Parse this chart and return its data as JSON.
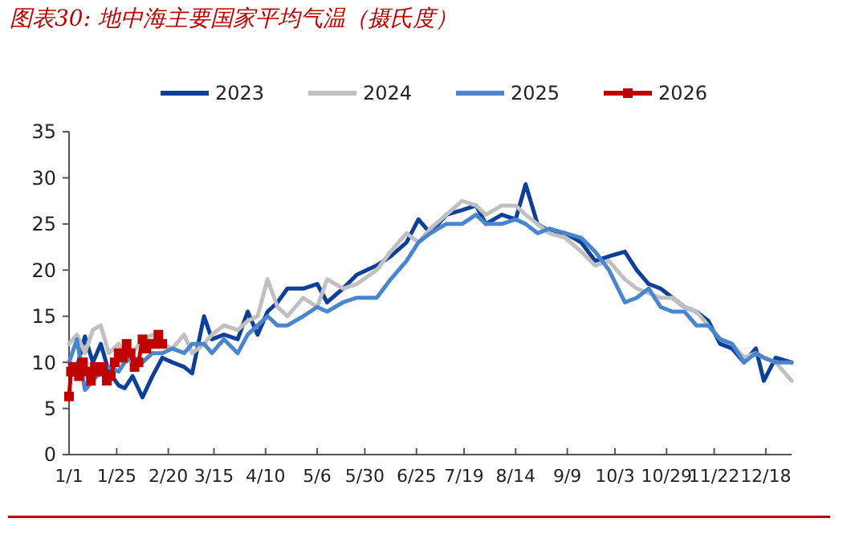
{
  "chart_data": {
    "type": "line",
    "title": "图表30: 地中海主要国家平均气温（摄氏度）",
    "x": [
      "--01-01",
      "--01-05",
      "--01-09",
      "--01-13",
      "--01-17",
      "--01-21",
      "--01-26",
      "--01-29",
      "--02-02",
      "--02-07",
      "--02-12",
      "--02-17",
      "--02-22",
      "--02-28",
      "--03-04",
      "--03-10",
      "--03-14",
      "--03-20",
      "--03-27",
      "--04-01",
      "--04-06",
      "--04-11",
      "--04-16",
      "--04-21",
      "--04-29",
      "--05-06",
      "--05-11",
      "--05-19",
      "--05-26",
      "--06-05",
      "--06-12",
      "--06-20",
      "--06-26",
      "--07-02",
      "--07-10",
      "--07-18",
      "--07-25",
      "--07-30",
      "--08-07",
      "--08-14",
      "--08-19",
      "--08-25",
      "--08-31",
      "--09-08",
      "--09-16",
      "--09-23",
      "--09-30",
      "--10-08",
      "--10-14",
      "--10-20",
      "--10-26",
      "--11-01",
      "--11-07",
      "--11-13",
      "--11-19",
      "--11-25",
      "--12-01",
      "--12-07",
      "--12-13",
      "--12-17",
      "--12-23",
      "--12-31"
    ],
    "series": [
      {
        "name": "2023",
        "color": "#0b3f9a",
        "values": [
          10,
          9.5,
          12.8,
          10,
          12,
          9,
          7.5,
          7.2,
          8.5,
          6.2,
          8.5,
          10.5,
          10,
          9.5,
          8.8,
          15,
          12.5,
          13,
          12.5,
          15.5,
          13,
          15.5,
          16.5,
          18,
          18,
          18.5,
          16.5,
          18,
          19.5,
          20.5,
          21.5,
          23,
          25.5,
          24,
          26,
          26.5,
          27,
          25,
          26,
          25.5,
          29.3,
          25,
          24.2,
          24,
          23,
          21,
          21.5,
          22,
          20,
          18.5,
          18,
          17,
          16,
          15.5,
          14.5,
          12,
          11.5,
          10,
          11.5,
          8,
          10.5,
          10
        ]
      },
      {
        "name": "2024",
        "color": "#c0c0c0",
        "values": [
          12,
          13,
          11,
          13.5,
          14,
          11,
          12,
          10.5,
          11,
          12.5,
          13,
          12,
          11.5,
          13,
          11,
          12,
          13,
          14,
          13.5,
          14.5,
          15,
          19,
          16,
          15,
          17,
          16,
          19,
          18,
          18.5,
          20,
          22,
          24,
          23,
          24.5,
          26,
          27.5,
          27,
          26,
          27,
          27,
          26,
          25,
          24,
          23.5,
          22,
          20.5,
          21,
          19,
          18,
          17.5,
          17,
          17,
          16,
          15.5,
          14,
          12.5,
          12,
          10.5,
          11,
          10.5,
          10,
          8
        ]
      },
      {
        "name": "2025",
        "color": "#4a86d0",
        "values": [
          10,
          12.5,
          7,
          8,
          9,
          9.5,
          9,
          10,
          10.5,
          10,
          11,
          11,
          11.5,
          11,
          12,
          12,
          11,
          12.5,
          11,
          13,
          14,
          15,
          14,
          14,
          15,
          16,
          15.5,
          16.5,
          17,
          17,
          19,
          21,
          23,
          24,
          25,
          25,
          26,
          25,
          25,
          25.5,
          25,
          24,
          24.5,
          24,
          23.5,
          22,
          20,
          16.5,
          17,
          18,
          16,
          15.5,
          15.5,
          14,
          14,
          12.5,
          12,
          10,
          11,
          10.5,
          10,
          10
        ]
      },
      {
        "name": "2026",
        "color": "#c00000",
        "marker": "square",
        "x": [
          "--01-01",
          "--01-02",
          "--01-03",
          "--01-04",
          "--01-06",
          "--01-08",
          "--01-10",
          "--01-12",
          "--01-14",
          "--01-16",
          "--01-18",
          "--01-20",
          "--01-22",
          "--01-24",
          "--01-26",
          "--01-28",
          "--01-30",
          "--02-01",
          "--02-03",
          "--02-05",
          "--02-07",
          "--02-09",
          "--02-11",
          "--02-13",
          "--02-15",
          "--02-17"
        ],
        "values": [
          6.3,
          9,
          9.5,
          9,
          8.5,
          10,
          9,
          8,
          9.5,
          9,
          9.5,
          8,
          8.5,
          10,
          11,
          10.5,
          12,
          11,
          9.5,
          10,
          12.5,
          11.5,
          12,
          12,
          13,
          12
        ]
      }
    ],
    "xlim": [
      "--01-01",
      "--12-31"
    ],
    "xticks": [
      {
        "value": "--01-01",
        "label": "1/1"
      },
      {
        "value": "--01-25",
        "label": "1/25"
      },
      {
        "value": "--02-20",
        "label": "2/20"
      },
      {
        "value": "--03-15",
        "label": "3/15"
      },
      {
        "value": "--04-10",
        "label": "4/10"
      },
      {
        "value": "--05-06",
        "label": "5/6"
      },
      {
        "value": "--05-30",
        "label": "5/30"
      },
      {
        "value": "--06-25",
        "label": "6/25"
      },
      {
        "value": "--07-19",
        "label": "7/19"
      },
      {
        "value": "--08-14",
        "label": "8/14"
      },
      {
        "value": "--09-09",
        "label": "9/9"
      },
      {
        "value": "--10-03",
        "label": "10/3"
      },
      {
        "value": "--10-29",
        "label": "10/29"
      },
      {
        "value": "--11-22",
        "label": "11/22"
      },
      {
        "value": "--12-18",
        "label": "12/18"
      }
    ],
    "ylim": [
      0,
      35
    ],
    "yticks": [
      0,
      5,
      10,
      15,
      20,
      25,
      30,
      35
    ],
    "grid": false,
    "legend": "top",
    "marker": "none",
    "line_style": "solid"
  }
}
